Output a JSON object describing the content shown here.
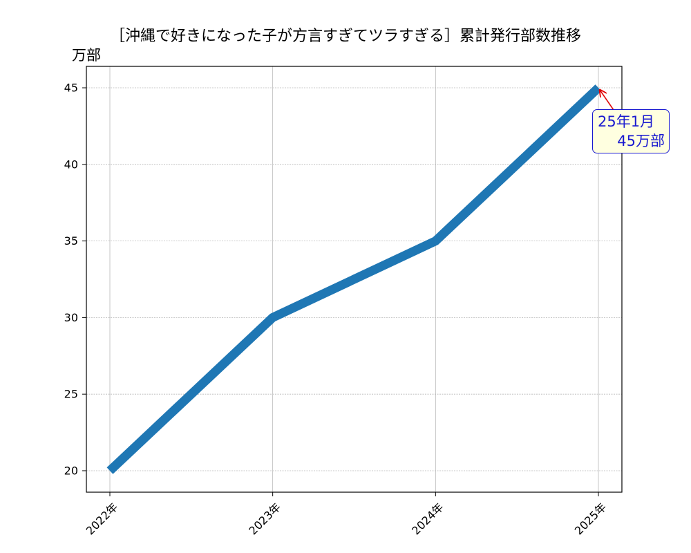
{
  "chart_data": {
    "type": "line",
    "title": "［沖縄で好きになった子が方言すぎてツラすぎる］累計発行部数推移",
    "ylabel": "万部",
    "xlabel": "",
    "categories": [
      "2022年",
      "2023年",
      "2024年",
      "2025年"
    ],
    "series": [
      {
        "values": [
          20,
          30,
          35,
          45
        ],
        "color": "#1f77b4"
      }
    ],
    "ylim": [
      18.6,
      46.4
    ],
    "yticks": [
      20,
      25,
      30,
      35,
      40,
      45
    ],
    "grid": true,
    "annotation": {
      "line1": "25年1月",
      "line2": "45万部",
      "target_category": "2025年",
      "target_value": 45,
      "text_color": "#1a1ad0",
      "box_fill": "#ffffe0",
      "arrow_color": "#e00000"
    }
  }
}
